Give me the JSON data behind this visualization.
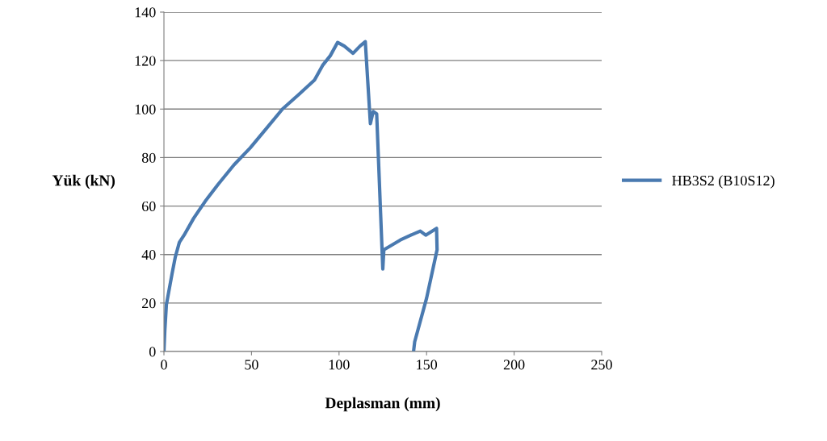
{
  "chart_data": {
    "type": "line",
    "xlabel": "Deplasman (mm)",
    "ylabel": "Yük (kN)",
    "xlim": [
      0,
      250
    ],
    "xticks": [
      0,
      50,
      100,
      150,
      200,
      250
    ],
    "ylim": [
      0,
      140
    ],
    "yticks": [
      0,
      20,
      40,
      60,
      80,
      100,
      120,
      140
    ],
    "grid": "y",
    "legend": "right",
    "marker": "none",
    "line_style": "solid",
    "series": [
      {
        "name": "HB3S2 (B10S12)",
        "color": "#4a7ab0",
        "x": [
          0,
          0.5,
          1.4,
          4.6,
          6.5,
          8.8,
          11.5,
          17,
          23.6,
          31,
          40,
          49.3,
          58.5,
          67.7,
          77,
          86,
          90.6,
          95,
          99.2,
          103,
          108,
          112,
          115,
          117.9,
          119.5,
          121.5,
          125,
          125.6,
          128,
          135,
          141,
          146.4,
          149.5,
          155.7,
          156,
          150,
          143.2,
          142.6
        ],
        "values": [
          0,
          8.6,
          19.3,
          32,
          39,
          45,
          48,
          55,
          62,
          69,
          77,
          84,
          92,
          100,
          106,
          112,
          118,
          122,
          127.5,
          126,
          123,
          126,
          127.8,
          94,
          99,
          98,
          34,
          42,
          43,
          46,
          48,
          49.7,
          48,
          50.8,
          42,
          22,
          4,
          0.3
        ]
      }
    ]
  }
}
